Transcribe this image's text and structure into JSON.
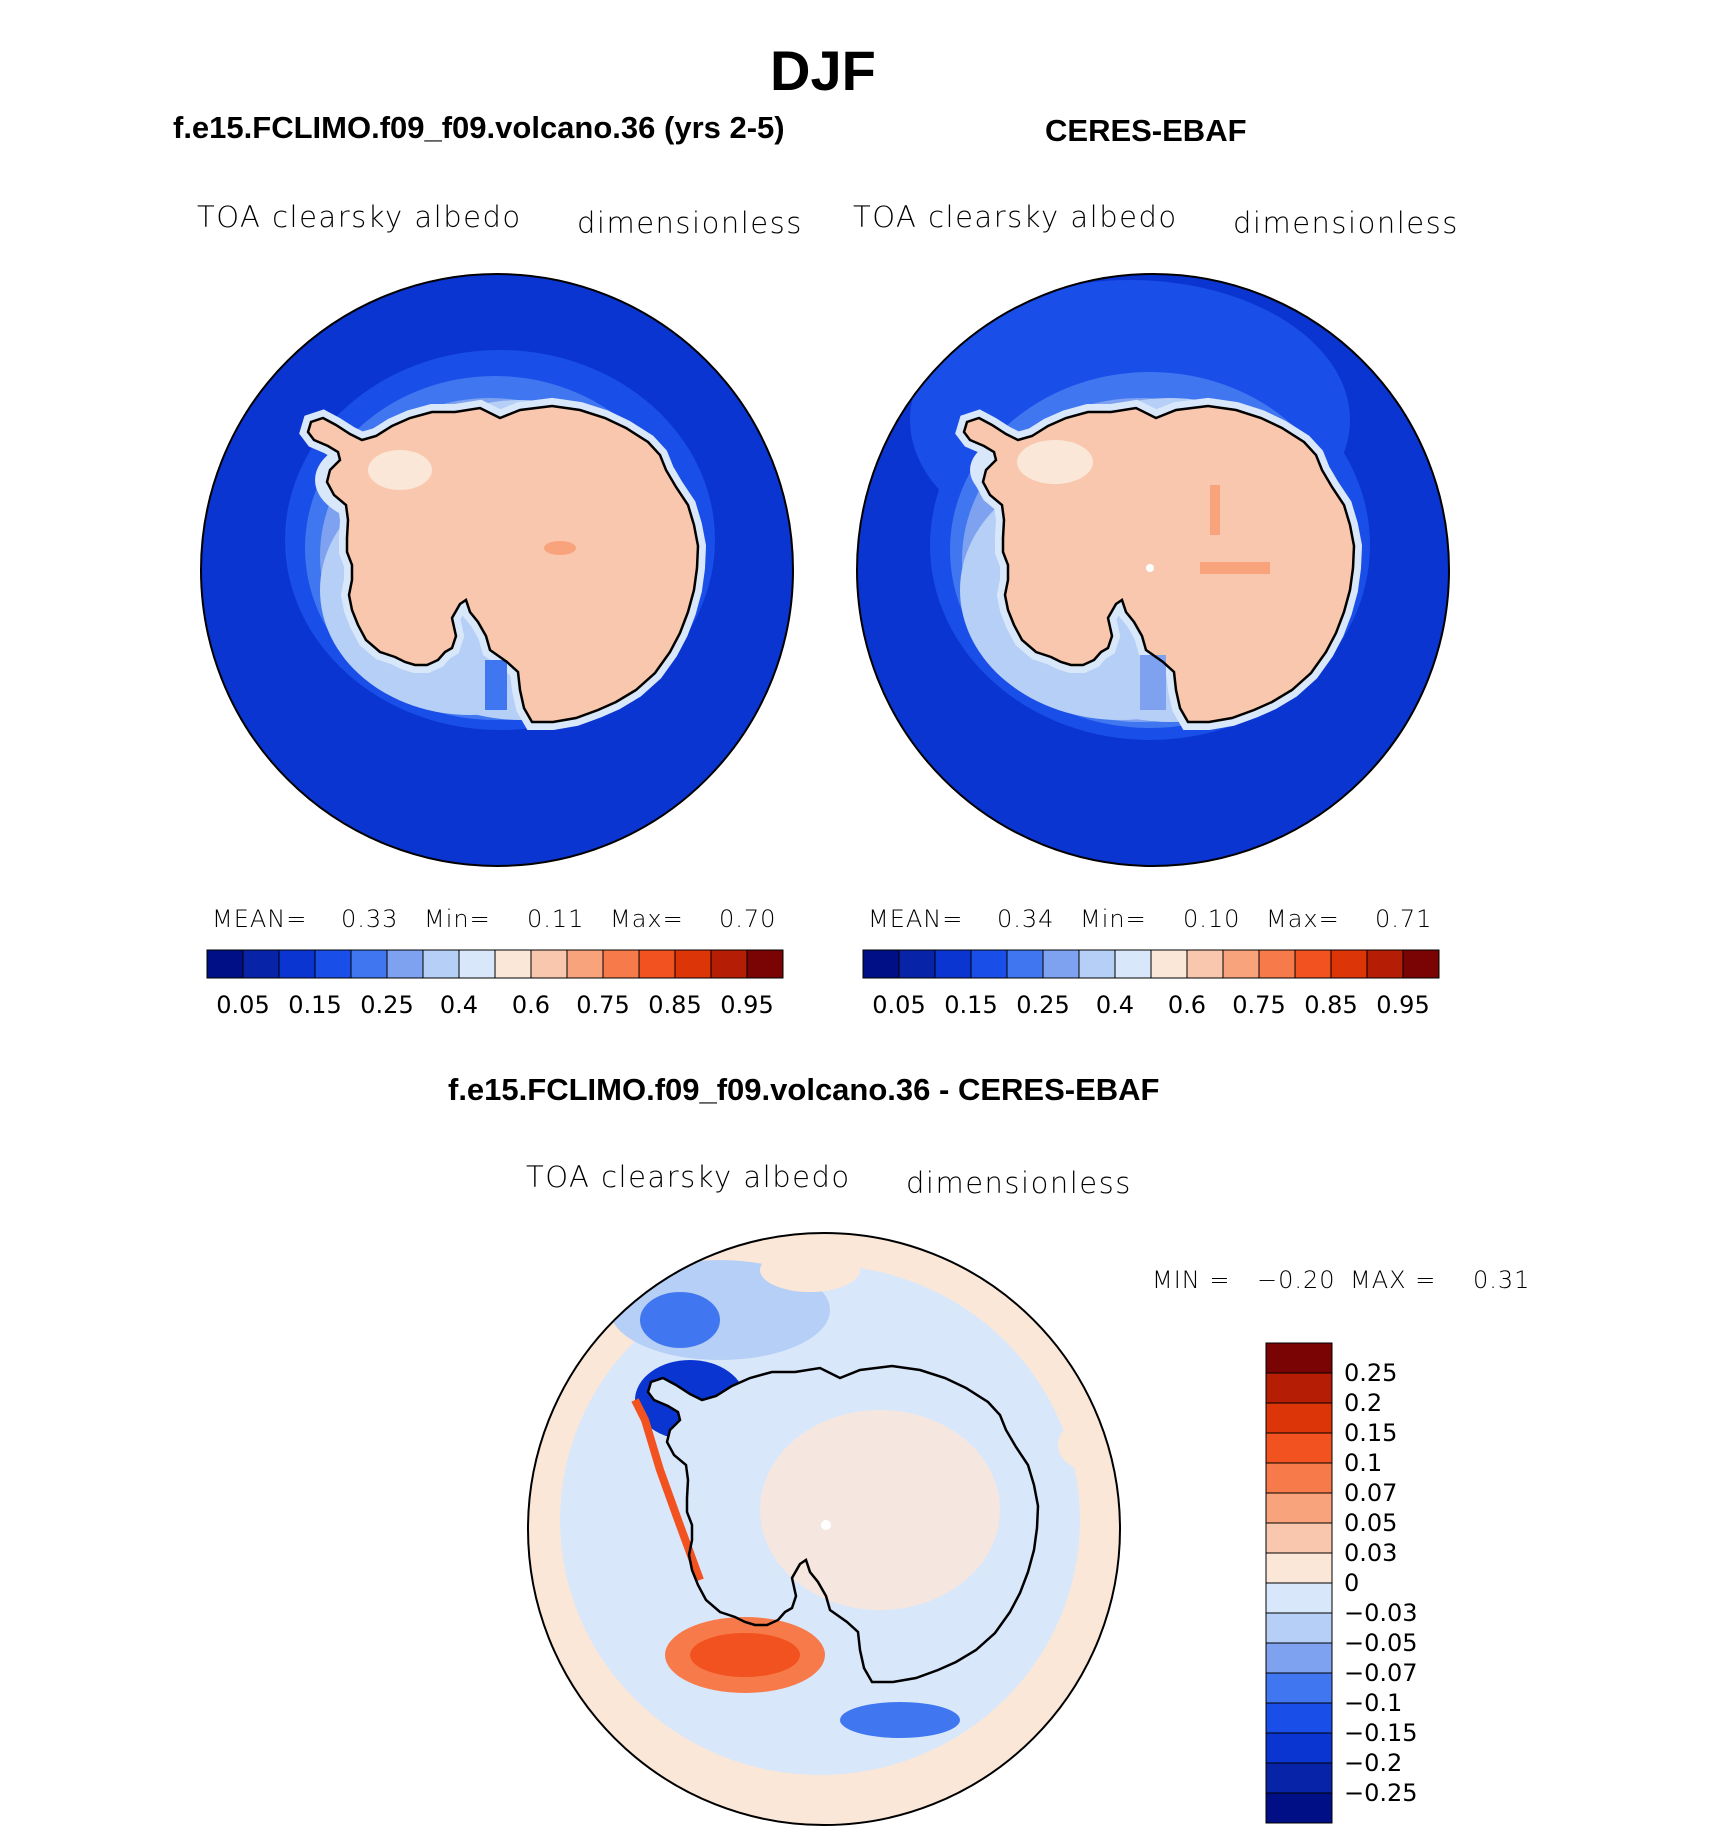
{
  "page": {
    "title": "DJF",
    "panel_left_title": "f.e15.FCLIMO.f09_f09.volcano.36 (yrs 2-5)",
    "panel_right_title": "CERES-EBAF",
    "diff_title": "f.e15.FCLIMO.f09_f09.volcano.36 - CERES-EBAF"
  },
  "panels": [
    {
      "variable": "TOA clearsky albedo",
      "units": "dimensionless",
      "mean_label": "MEAN=",
      "mean": "0.33",
      "min_label": "Min=",
      "min": "0.11",
      "max_label": "Max=",
      "max": "0.70"
    },
    {
      "variable": "TOA clearsky albedo",
      "units": "dimensionless",
      "mean_label": "MEAN=",
      "mean": "0.34",
      "min_label": "Min=",
      "min": "0.10",
      "max_label": "Max=",
      "max": "0.71"
    },
    {
      "variable": "TOA clearsky albedo",
      "units": "dimensionless",
      "min_label": "MIN =",
      "min": "−0.20",
      "max_label": "MAX =",
      "max": "0.31"
    }
  ],
  "colorbar_abs": {
    "colors": [
      "#000f85",
      "#0724a8",
      "#0a35d0",
      "#1a4ee8",
      "#4077f0",
      "#7ea2f0",
      "#b6cff6",
      "#d9e7fb",
      "#fbe7d8",
      "#f8c7ae",
      "#f8a37c",
      "#f77b4a",
      "#f2521f",
      "#dc3507",
      "#b51e04",
      "#7a0403"
    ],
    "labels": [
      "0.05",
      "0.15",
      "0.25",
      "0.4",
      "0.6",
      "0.75",
      "0.85",
      "0.95"
    ]
  },
  "colorbar_diff": {
    "colors": [
      "#7a0403",
      "#b51e04",
      "#dc3507",
      "#f2521f",
      "#f77b4a",
      "#f8a37c",
      "#f8c7ae",
      "#fbe7d8",
      "#d9e7fb",
      "#b6cff6",
      "#7ea2f0",
      "#4077f0",
      "#1a4ee8",
      "#0a35d0",
      "#0724a8",
      "#000f85"
    ],
    "labels": [
      "0.25",
      "0.2",
      "0.15",
      "0.1",
      "0.07",
      "0.05",
      "0.03",
      "0",
      "−0.03",
      "−0.05",
      "−0.07",
      "−0.1",
      "−0.15",
      "−0.2",
      "−0.25"
    ]
  }
}
